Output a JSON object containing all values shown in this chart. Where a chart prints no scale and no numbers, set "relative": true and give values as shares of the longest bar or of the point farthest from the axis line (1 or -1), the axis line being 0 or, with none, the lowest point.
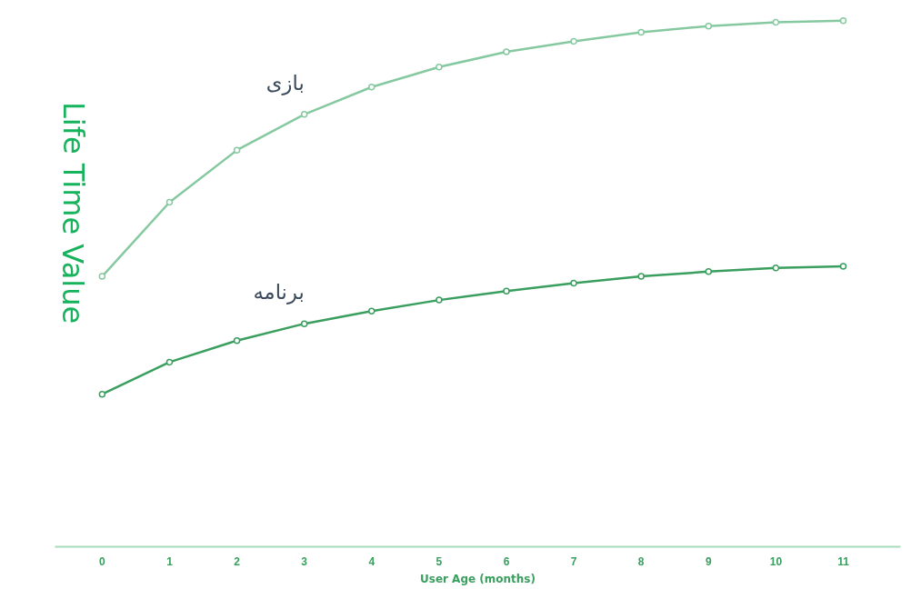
{
  "chart_data": {
    "type": "line",
    "relative": true,
    "xlabel": "User Age (months)",
    "ylabel": "Life Time Value",
    "categories": [
      "0",
      "1",
      "2",
      "3",
      "4",
      "5",
      "6",
      "7",
      "8",
      "9",
      "10",
      "11"
    ],
    "marker": "circle",
    "grid": false,
    "series": [
      {
        "name": "بازی",
        "color": "#86c9a0",
        "values": [
          0.514,
          0.655,
          0.754,
          0.822,
          0.874,
          0.912,
          0.941,
          0.961,
          0.978,
          0.99,
          0.997,
          1
        ]
      },
      {
        "name": "برنامه",
        "color": "#3a9e5f",
        "values": [
          0.29,
          0.351,
          0.392,
          0.424,
          0.448,
          0.469,
          0.486,
          0.501,
          0.514,
          0.523,
          0.53,
          0.533
        ]
      }
    ]
  }
}
